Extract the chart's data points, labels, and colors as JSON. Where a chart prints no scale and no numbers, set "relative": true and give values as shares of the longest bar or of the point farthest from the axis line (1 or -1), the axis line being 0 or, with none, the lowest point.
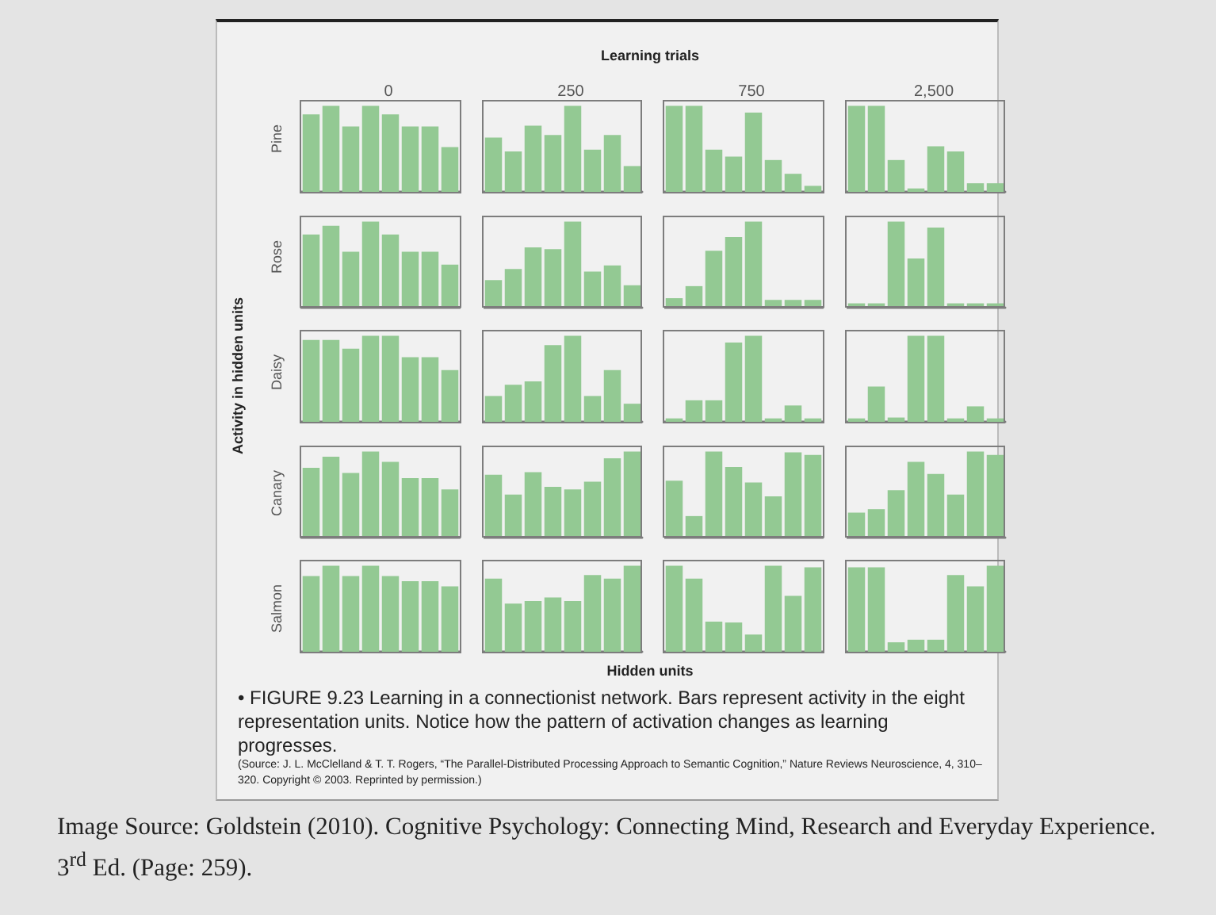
{
  "chart_data": [
    {
      "type": "bar",
      "relative": true,
      "title": "0",
      "ylabel": "Pine",
      "color": "#93c993",
      "categories": [
        null,
        null,
        null,
        null,
        null,
        null,
        null,
        null
      ],
      "values": [
        0.9,
        1,
        0.76,
        1,
        0.9,
        0.76,
        0.76,
        0.52
      ]
    },
    {
      "type": "bar",
      "relative": true,
      "title": "250",
      "color": "#93c993",
      "categories": [
        null,
        null,
        null,
        null,
        null,
        null,
        null,
        null
      ],
      "values": [
        0.63,
        0.47,
        0.77,
        0.66,
        1,
        0.49,
        0.66,
        0.3
      ]
    },
    {
      "type": "bar",
      "relative": true,
      "title": "750",
      "color": "#93c993",
      "categories": [
        null,
        null,
        null,
        null,
        null,
        null,
        null,
        null
      ],
      "values": [
        1,
        1,
        0.49,
        0.41,
        0.92,
        0.37,
        0.21,
        0.07
      ]
    },
    {
      "type": "bar",
      "relative": true,
      "title": "2,500",
      "color": "#93c993",
      "categories": [
        null,
        null,
        null,
        null,
        null,
        null,
        null,
        null
      ],
      "values": [
        1,
        1,
        0.37,
        0.04,
        0.53,
        0.47,
        0.1,
        0.1
      ]
    },
    {
      "type": "bar",
      "relative": true,
      "ylabel": "Rose",
      "color": "#93c993",
      "categories": [
        null,
        null,
        null,
        null,
        null,
        null,
        null,
        null
      ],
      "values": [
        0.85,
        0.95,
        0.65,
        1,
        0.85,
        0.65,
        0.65,
        0.5
      ]
    },
    {
      "type": "bar",
      "relative": true,
      "color": "#93c993",
      "categories": [
        null,
        null,
        null,
        null,
        null,
        null,
        null,
        null
      ],
      "values": [
        0.32,
        0.45,
        0.7,
        0.68,
        1,
        0.42,
        0.49,
        0.26
      ]
    },
    {
      "type": "bar",
      "relative": true,
      "color": "#93c993",
      "categories": [
        null,
        null,
        null,
        null,
        null,
        null,
        null,
        null
      ],
      "values": [
        0.11,
        0.25,
        0.66,
        0.82,
        1,
        0.09,
        0.09,
        0.09
      ]
    },
    {
      "type": "bar",
      "relative": true,
      "color": "#93c993",
      "categories": [
        null,
        null,
        null,
        null,
        null,
        null,
        null,
        null
      ],
      "values": [
        0.05,
        0.05,
        1,
        0.57,
        0.93,
        0.05,
        0.05,
        0.05
      ]
    },
    {
      "type": "bar",
      "relative": true,
      "ylabel": "Daisy",
      "color": "#93c993",
      "categories": [
        null,
        null,
        null,
        null,
        null,
        null,
        null,
        null
      ],
      "values": [
        0.95,
        0.95,
        0.85,
        1,
        1,
        0.75,
        0.75,
        0.6
      ]
    },
    {
      "type": "bar",
      "relative": true,
      "color": "#93c993",
      "categories": [
        null,
        null,
        null,
        null,
        null,
        null,
        null,
        null
      ],
      "values": [
        0.3,
        0.43,
        0.47,
        0.89,
        1,
        0.3,
        0.6,
        0.21
      ]
    },
    {
      "type": "bar",
      "relative": true,
      "color": "#93c993",
      "categories": [
        null,
        null,
        null,
        null,
        null,
        null,
        null,
        null
      ],
      "values": [
        0.04,
        0.25,
        0.25,
        0.92,
        1,
        0.04,
        0.19,
        0.04
      ]
    },
    {
      "type": "bar",
      "relative": true,
      "color": "#93c993",
      "categories": [
        null,
        null,
        null,
        null,
        null,
        null,
        null,
        null
      ],
      "values": [
        0.04,
        0.41,
        0.05,
        1,
        1,
        0.04,
        0.18,
        0.04
      ]
    },
    {
      "type": "bar",
      "relative": true,
      "ylabel": "Canary",
      "color": "#93c993",
      "categories": [
        null,
        null,
        null,
        null,
        null,
        null,
        null,
        null
      ],
      "values": [
        0.81,
        0.94,
        0.75,
        1,
        0.88,
        0.69,
        0.69,
        0.56
      ]
    },
    {
      "type": "bar",
      "relative": true,
      "color": "#93c993",
      "categories": [
        null,
        null,
        null,
        null,
        null,
        null,
        null,
        null
      ],
      "values": [
        0.73,
        0.5,
        0.76,
        0.59,
        0.56,
        0.65,
        0.92,
        1
      ]
    },
    {
      "type": "bar",
      "relative": true,
      "color": "#93c993",
      "categories": [
        null,
        null,
        null,
        null,
        null,
        null,
        null,
        null
      ],
      "values": [
        0.66,
        0.25,
        1,
        0.82,
        0.64,
        0.48,
        0.99,
        0.96
      ]
    },
    {
      "type": "bar",
      "relative": true,
      "color": "#93c993",
      "categories": [
        null,
        null,
        null,
        null,
        null,
        null,
        null,
        null
      ],
      "values": [
        0.29,
        0.33,
        0.55,
        0.88,
        0.74,
        0.5,
        1,
        0.96
      ]
    },
    {
      "type": "bar",
      "relative": true,
      "ylabel": "Salmon",
      "color": "#93c993",
      "categories": [
        null,
        null,
        null,
        null,
        null,
        null,
        null,
        null
      ],
      "values": [
        0.88,
        1,
        0.88,
        1,
        0.88,
        0.82,
        0.82,
        0.76
      ]
    },
    {
      "type": "bar",
      "relative": true,
      "color": "#93c993",
      "categories": [
        null,
        null,
        null,
        null,
        null,
        null,
        null,
        null
      ],
      "values": [
        0.85,
        0.56,
        0.59,
        0.63,
        0.59,
        0.89,
        0.85,
        1
      ]
    },
    {
      "type": "bar",
      "relative": true,
      "color": "#93c993",
      "categories": [
        null,
        null,
        null,
        null,
        null,
        null,
        null,
        null
      ],
      "values": [
        1,
        0.85,
        0.35,
        0.34,
        0.2,
        1,
        0.65,
        0.98
      ]
    },
    {
      "type": "bar",
      "relative": true,
      "color": "#93c993",
      "categories": [
        null,
        null,
        null,
        null,
        null,
        null,
        null,
        null
      ],
      "values": [
        0.98,
        0.98,
        0.11,
        0.14,
        0.14,
        0.89,
        0.76,
        1
      ]
    },
    {
      "type": "other",
      "title": "Learning trials",
      "xlabel": "Hidden units",
      "ylabel": "Activity in hidden units",
      "annotations": [
        "• FIGURE 9.23 Learning in a connectionist network. Bars represent activity in the eight representation units. Notice how the pattern of activation changes as learning progresses.",
        "(Source: J. L. McClelland & T. T. Rogers, “The Parallel-Distributed Processing Approach to Semantic Cognition,” Nature Reviews Neuroscience, 4, 310–320. Copyright © 2003. Reprinted by permission.)",
        "Image Source: Goldstein (2010). Cognitive Psychology: Connecting Mind, Research and Everyday Experience. 3$^{rd}$ Ed. (Page: 259)."
      ]
    }
  ]
}
